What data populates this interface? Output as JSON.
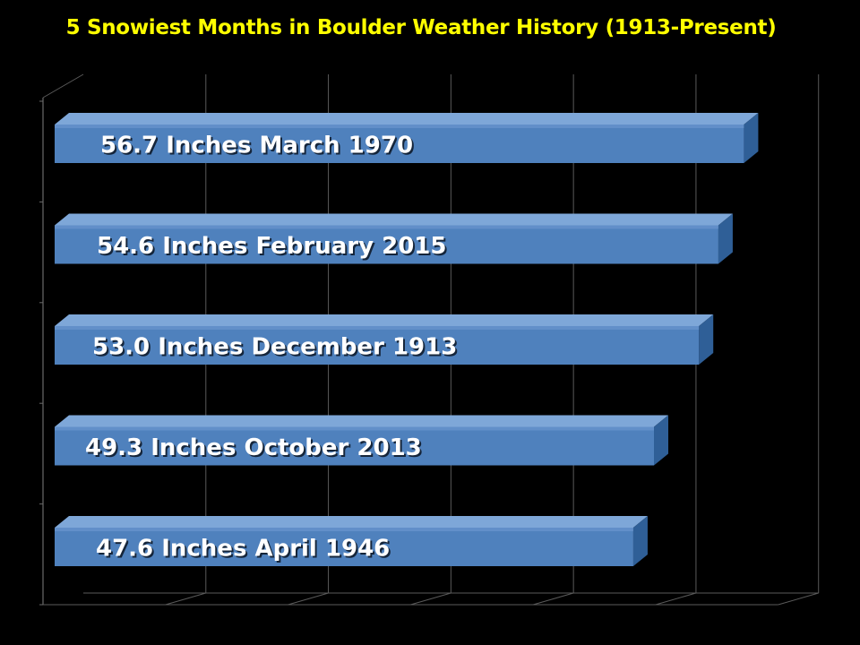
{
  "chart_data": {
    "type": "bar",
    "orientation": "horizontal",
    "title": "5 Snowiest Months in Boulder Weather History (1913-Present)",
    "xlabel": "",
    "ylabel": "",
    "xlim": [
      0,
      60
    ],
    "grid": true,
    "legend": "none",
    "bar_color": "#4f81bd",
    "bar_side_color": "#2f5f97",
    "bar_top_color": "#7ea7d8",
    "title_color": "#ffff00",
    "background": "#000000",
    "categories": [
      "March 1970",
      "February 2015",
      "December 1913",
      "October 2013",
      "April 1946"
    ],
    "values": [
      56.7,
      54.6,
      53.0,
      49.3,
      47.6
    ],
    "labels": [
      "56.7 Inches March 1970",
      "54.6 Inches February 2015",
      "53.0 Inches December 1913",
      "49.3 Inches October 2013",
      "47.6 Inches April 1946"
    ]
  }
}
